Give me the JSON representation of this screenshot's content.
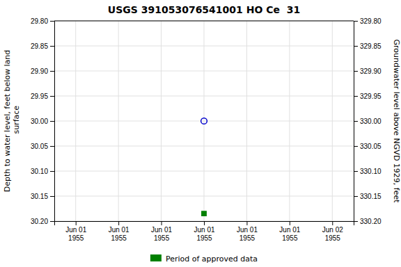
{
  "chart_data": {
    "type": "scatter",
    "title": "USGS 391053076541001 HO Ce  31",
    "y_label": "Depth to water level, feet below land\n surface",
    "y2_label": "Groundwater level above NGVD 1929, feet",
    "categories": [
      "Jun 01\n1955",
      "Jun 01\n1955",
      "Jun 01\n1955",
      "Jun 01\n1955",
      "Jun 01\n1955",
      "Jun 01\n1955",
      "Jun 02\n1955"
    ],
    "series": [
      {
        "color": "#0000cc",
        "marker": "open-circle",
        "values": [
          null,
          null,
          null,
          30.0,
          null,
          null,
          null
        ]
      },
      {
        "name": "Period of approved data",
        "color": "#008000",
        "marker": "square",
        "values": [
          null,
          null,
          null,
          30.185,
          null,
          null,
          null
        ]
      }
    ],
    "ylim": [
      30.2,
      29.8
    ],
    "yticks": [
      {
        "value": 29.8,
        "label": "29.80"
      },
      {
        "value": 29.85,
        "label": "29.85"
      },
      {
        "value": 29.9,
        "label": "29.90"
      },
      {
        "value": 29.95,
        "label": "29.95"
      },
      {
        "value": 30.0,
        "label": "30.00"
      },
      {
        "value": 30.05,
        "label": "30.05"
      },
      {
        "value": 30.1,
        "label": "30.10"
      },
      {
        "value": 30.15,
        "label": "30.15"
      },
      {
        "value": 30.2,
        "label": "30.20"
      }
    ],
    "y2lim": [
      330.2,
      329.8
    ],
    "y2ticks": [
      {
        "value": 330.2,
        "label": "330.20"
      },
      {
        "value": 330.15,
        "label": "330.15"
      },
      {
        "value": 330.1,
        "label": "330.10"
      },
      {
        "value": 330.05,
        "label": "330.05"
      },
      {
        "value": 330.0,
        "label": "330.00"
      },
      {
        "value": 329.95,
        "label": "329.95"
      },
      {
        "value": 329.9,
        "label": "329.90"
      },
      {
        "value": 329.85,
        "label": "329.85"
      },
      {
        "value": 329.8,
        "label": "329.80"
      }
    ],
    "grid": true,
    "legend": "bottom"
  }
}
